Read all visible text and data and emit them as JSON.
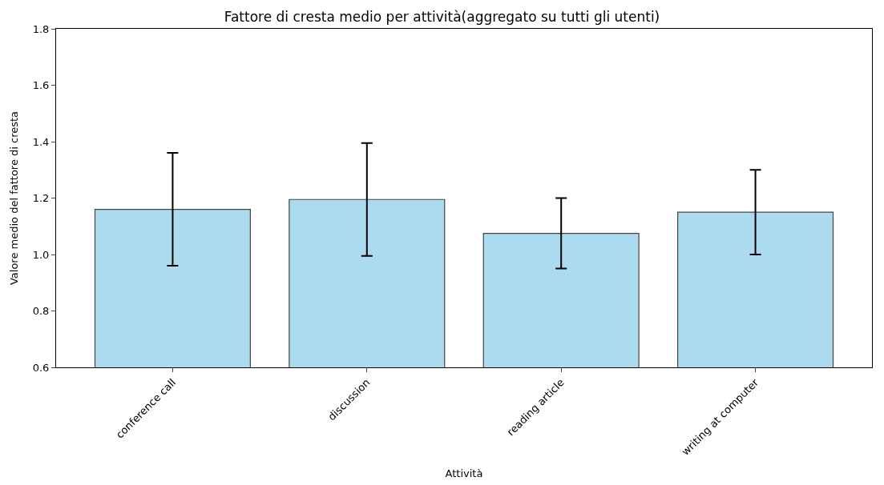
{
  "chart_data": {
    "type": "bar",
    "title": "Fattore di cresta medio per attività(aggregato su tutti gli utenti)",
    "xlabel": "Attività",
    "ylabel": "Valore medio del fattore di cresta",
    "categories": [
      "conference call",
      "discussion",
      "reading article",
      "writing at computer"
    ],
    "values": [
      1.16,
      1.195,
      1.075,
      1.15
    ],
    "errors": [
      0.2,
      0.2,
      0.125,
      0.15
    ],
    "color": "#acdbef",
    "ylim": [
      0.6,
      1.8
    ],
    "yticks": [
      0.6,
      0.8,
      {
        "value": 1,
        "label": "1.0"
      },
      1.2,
      1.4,
      1.6,
      1.8
    ]
  }
}
